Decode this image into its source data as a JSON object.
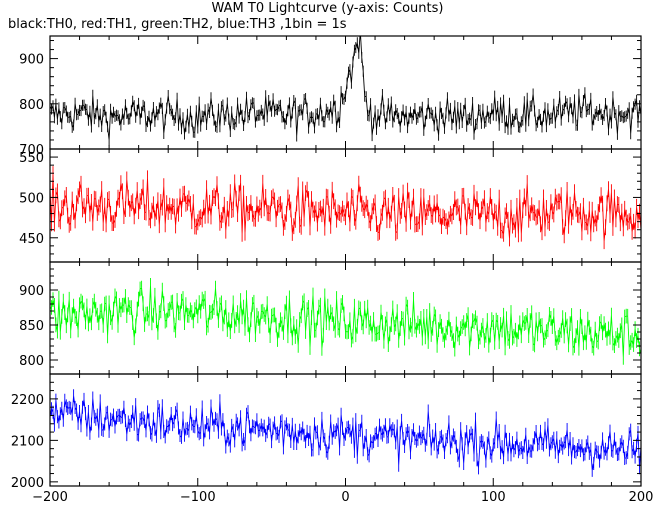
{
  "chart_data": {
    "type": "line",
    "title": "WAM T0 Lightcurve (y-axis: Counts)",
    "subtitle": "black:TH0, red:TH1, green:TH2, blue:TH3 ,1bin = 1s",
    "xlim": [
      -200,
      200
    ],
    "x_ticks": [
      "−200",
      "−100",
      "0",
      "100",
      "200"
    ],
    "x_tick_values": [
      -200,
      -100,
      0,
      100,
      200
    ],
    "series": [
      {
        "name": "TH0",
        "color": "#000000",
        "ylim": [
          700,
          950
        ],
        "y_ticks": [
          "900",
          "800",
          "700"
        ],
        "y_tick_values": [
          900,
          800,
          700
        ],
        "baseline": 775,
        "noise": 35,
        "x": [
          -200,
          -180,
          -160,
          -140,
          -120,
          -100,
          -80,
          -60,
          -40,
          -20,
          -5,
          0,
          3,
          5,
          7,
          9,
          10,
          11,
          12,
          13,
          15,
          20,
          40,
          60,
          80,
          100,
          120,
          140,
          160,
          180,
          200
        ],
        "y": [
          775,
          780,
          770,
          775,
          775,
          770,
          775,
          780,
          775,
          780,
          790,
          840,
          870,
          880,
          930,
          945,
          930,
          900,
          860,
          820,
          785,
          775,
          770,
          775,
          770,
          780,
          775,
          775,
          785,
          780,
          780
        ]
      },
      {
        "name": "TH1",
        "color": "#ff0000",
        "ylim": [
          420,
          560
        ],
        "y_ticks": [
          "550",
          "500",
          "450"
        ],
        "y_tick_values": [
          550,
          500,
          450
        ],
        "baseline": 485,
        "noise": 28,
        "x": [
          -200,
          -150,
          -100,
          -50,
          0,
          50,
          100,
          150,
          200
        ],
        "y": [
          490,
          490,
          487,
          485,
          480,
          478,
          478,
          482,
          480
        ]
      },
      {
        "name": "TH2",
        "color": "#00ff00",
        "ylim": [
          780,
          940
        ],
        "y_ticks": [
          "900",
          "850",
          "800"
        ],
        "y_tick_values": [
          900,
          850,
          800
        ],
        "baseline": 860,
        "noise": 30,
        "x": [
          -200,
          -150,
          -100,
          -50,
          0,
          50,
          100,
          150,
          200
        ],
        "y": [
          862,
          870,
          868,
          862,
          855,
          850,
          846,
          840,
          835
        ]
      },
      {
        "name": "TH3",
        "color": "#0000ff",
        "ylim": [
          1990,
          2260
        ],
        "y_ticks": [
          "2200",
          "2100",
          "2000"
        ],
        "y_tick_values": [
          2200,
          2100,
          2000
        ],
        "baseline": 2120,
        "noise": 45,
        "x": [
          -200,
          -150,
          -100,
          -50,
          0,
          50,
          100,
          150,
          200
        ],
        "y": [
          2165,
          2150,
          2135,
          2125,
          2115,
          2100,
          2095,
          2085,
          2075
        ]
      }
    ],
    "bin_seconds": 1,
    "grid": false
  }
}
